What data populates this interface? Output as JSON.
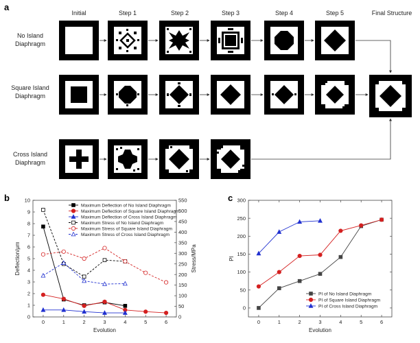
{
  "panel_labels": {
    "a": "a",
    "b": "b",
    "c": "c"
  },
  "figure_a": {
    "column_headers": [
      "Initial",
      "Step 1",
      "Step 2",
      "Step 3",
      "Step 4",
      "Step 5",
      "Final Structure"
    ],
    "rows": [
      {
        "label_line1": "No Island",
        "label_line2": "Diaphragm"
      },
      {
        "label_line1": "Square Island",
        "label_line2": "Diaphragm"
      },
      {
        "label_line1": "Cross Island",
        "label_line2": "Diaphragm"
      }
    ]
  },
  "chart_data": [
    {
      "type": "line",
      "xlabel": "Evolution",
      "ylabel": "Deflection/μm",
      "ylabel2": "Stress/MPa",
      "xlim": [
        -0.5,
        6.5
      ],
      "ylim": [
        0,
        10
      ],
      "ylim2": [
        0,
        550
      ],
      "x_ticks": [
        0,
        1,
        2,
        3,
        4,
        5,
        6
      ],
      "y_ticks": [
        0,
        1,
        2,
        3,
        4,
        5,
        6,
        7,
        8,
        9,
        10
      ],
      "y2_ticks": [
        0,
        50,
        100,
        150,
        200,
        250,
        300,
        350,
        400,
        450,
        500,
        550
      ],
      "legend_position": "top-right",
      "series": [
        {
          "name": "Maximum Deflection of No Island Diaphragm",
          "axis": "left",
          "color": "#000000",
          "marker": "square",
          "filled": true,
          "dashed": false,
          "x": [
            0,
            1,
            2,
            3,
            4
          ],
          "values": [
            7.75,
            1.5,
            1.0,
            1.25,
            0.95
          ]
        },
        {
          "name": "Maximum Deflection of Square Island Diaphragm",
          "axis": "left",
          "color": "#d42020",
          "marker": "circle",
          "filled": true,
          "dashed": false,
          "x": [
            0,
            1,
            2,
            3,
            4,
            5,
            6
          ],
          "values": [
            1.9,
            1.55,
            0.95,
            1.3,
            0.6,
            0.45,
            0.35
          ]
        },
        {
          "name": "Maximum Deflection of Cross Island Diaphragm",
          "axis": "left",
          "color": "#2030d0",
          "marker": "triangle",
          "filled": true,
          "dashed": false,
          "x": [
            0,
            1,
            2,
            3,
            4
          ],
          "values": [
            0.6,
            0.6,
            0.45,
            0.35,
            0.35
          ]
        },
        {
          "name": "Maximum Stress of No Island Diaphragm",
          "axis": "right",
          "color": "#000000",
          "marker": "square",
          "filled": false,
          "dashed": true,
          "x": [
            0,
            1,
            2,
            3,
            4
          ],
          "values": [
            505,
            250,
            190,
            268,
            262
          ]
        },
        {
          "name": "Maximum Stress of Square Island Diaphragm",
          "axis": "right",
          "color": "#d42020",
          "marker": "circle",
          "filled": false,
          "dashed": true,
          "x": [
            0,
            1,
            2,
            3,
            4,
            5,
            6
          ],
          "values": [
            295,
            308,
            275,
            325,
            262,
            208,
            163
          ]
        },
        {
          "name": "Maximum Stress of Cross Island Diaphragm",
          "axis": "right",
          "color": "#2030d0",
          "marker": "triangle",
          "filled": false,
          "dashed": true,
          "x": [
            0,
            1,
            2,
            3,
            4
          ],
          "values": [
            195,
            255,
            170,
            155,
            157
          ]
        }
      ]
    },
    {
      "type": "line",
      "xlabel": "Evolution",
      "ylabel": "PI",
      "xlim": [
        -0.5,
        6.5
      ],
      "ylim": [
        -25,
        300
      ],
      "x_ticks": [
        0,
        1,
        2,
        3,
        4,
        5,
        6
      ],
      "y_ticks": [
        0,
        50,
        100,
        150,
        200,
        250,
        300
      ],
      "legend_position": "bottom-right",
      "series": [
        {
          "name": "PI of No Island Diaphragm",
          "color": "#444444",
          "marker": "square",
          "x": [
            0,
            1,
            2,
            3,
            4,
            5,
            6
          ],
          "values": [
            0,
            55,
            75,
            95,
            142,
            228,
            246
          ]
        },
        {
          "name": "PI of Square Island Diaphragm",
          "color": "#d42020",
          "marker": "circle",
          "x": [
            0,
            1,
            2,
            3,
            4,
            5,
            6
          ],
          "values": [
            60,
            100,
            145,
            148,
            215,
            230,
            246
          ]
        },
        {
          "name": "PI of Cross Island Diaphragm",
          "color": "#2030d0",
          "marker": "triangle",
          "x": [
            0,
            1,
            2,
            3
          ],
          "values": [
            152,
            212,
            240,
            243
          ]
        }
      ]
    }
  ]
}
